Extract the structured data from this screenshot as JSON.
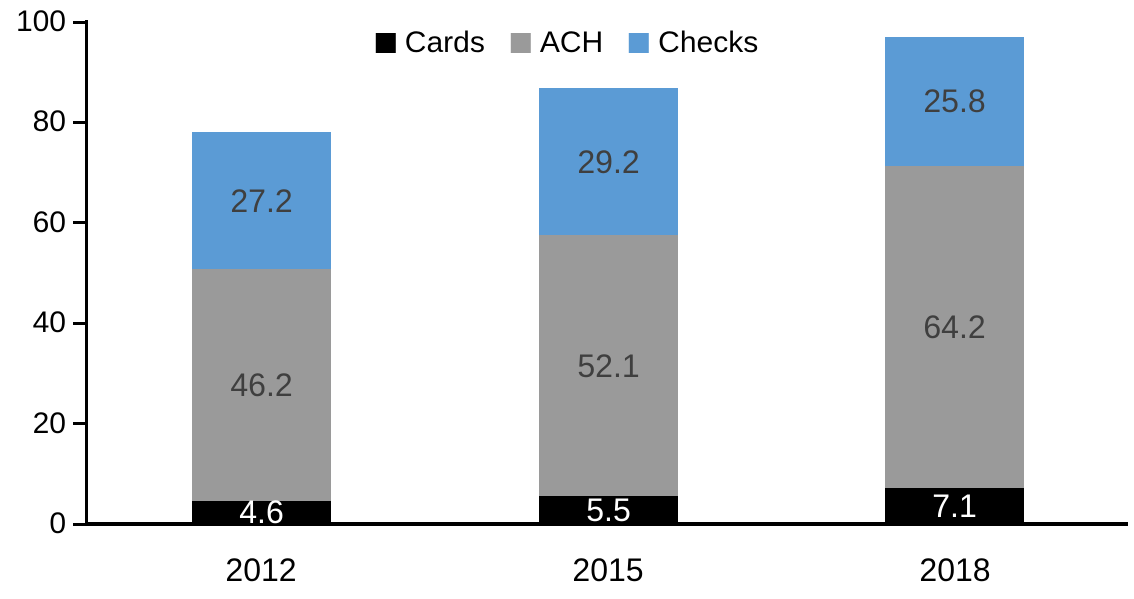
{
  "chart_data": {
    "type": "bar",
    "stacked": true,
    "title": "",
    "xlabel": "",
    "ylabel": "",
    "categories": [
      "2012",
      "2015",
      "2018"
    ],
    "series": [
      {
        "name": "Cards",
        "color": "#000000",
        "label_color": "#FFFFFF",
        "values": [
          4.6,
          5.5,
          7.1
        ]
      },
      {
        "name": "ACH",
        "color": "#9A9A9A",
        "label_color": "#3F3F3F",
        "values": [
          46.2,
          52.1,
          64.2
        ]
      },
      {
        "name": "Checks",
        "color": "#5B9BD5",
        "label_color": "#3F3F3F",
        "values": [
          27.2,
          29.2,
          25.8
        ]
      }
    ],
    "totals": [
      78.0,
      86.8,
      97.1
    ],
    "ylim": [
      0,
      100
    ],
    "yticks": [
      0,
      20,
      40,
      60,
      80,
      100
    ],
    "grid": false,
    "legend_position": "top-center",
    "legend_entries": [
      "Cards",
      "ACH",
      "Checks"
    ],
    "axis_color": "#000000",
    "tick_label_color": "#000000",
    "background_color": "#FFFFFF"
  }
}
